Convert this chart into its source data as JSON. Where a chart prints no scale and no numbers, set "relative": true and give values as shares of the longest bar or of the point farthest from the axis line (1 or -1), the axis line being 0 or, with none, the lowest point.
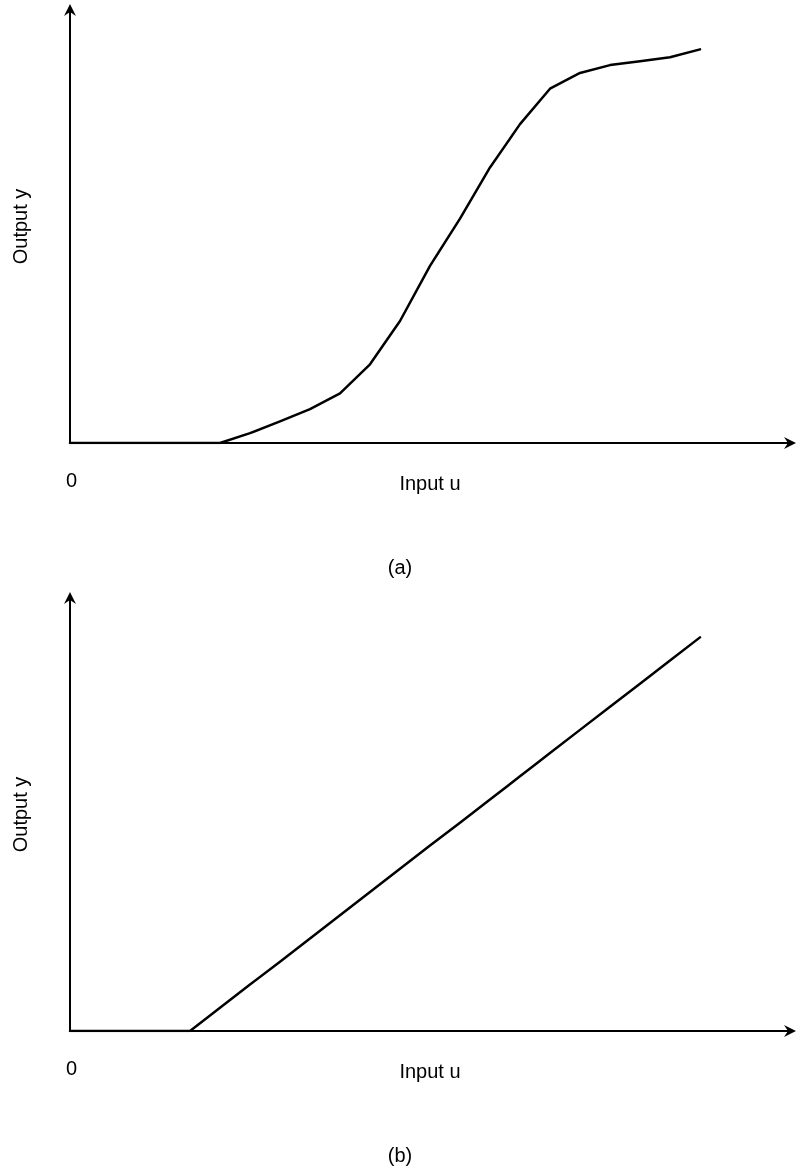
{
  "chart_data": [
    {
      "type": "line",
      "title": "(a)",
      "xlabel": "Input u",
      "ylabel": "Output y",
      "relative": true,
      "marker": "none",
      "line_style": "solid",
      "annotations": [
        "0"
      ],
      "categories": [
        null,
        null,
        null,
        null,
        null,
        null,
        null,
        null,
        null,
        null,
        null,
        null,
        null,
        null,
        null,
        null,
        null,
        null,
        null,
        null,
        null,
        null,
        null,
        null,
        null
      ],
      "series": [
        {
          "color": "#000000",
          "values": [
            0,
            0,
            0,
            0,
            0,
            0,
            0.025,
            0.055,
            0.086,
            0.126,
            0.2,
            0.31,
            0.45,
            0.57,
            0.7,
            0.81,
            0.9,
            0.94,
            0.96,
            0.97,
            0.98,
            1.0,
            null,
            null,
            null
          ]
        }
      ]
    },
    {
      "type": "line",
      "title": "(b)",
      "xlabel": "Input u",
      "ylabel": "Output y",
      "relative": true,
      "marker": "none",
      "line_style": "solid",
      "annotations": [
        "0"
      ],
      "categories": [
        null,
        null,
        null,
        null,
        null,
        null,
        null,
        null,
        null,
        null,
        null,
        null,
        null,
        null,
        null,
        null,
        null,
        null,
        null,
        null,
        null,
        null,
        null,
        null,
        null
      ],
      "series": [
        {
          "color": "#000000",
          "values": [
            0,
            0,
            0,
            0,
            0,
            0.059,
            0.118,
            0.176,
            0.235,
            0.294,
            0.353,
            0.412,
            0.471,
            0.529,
            0.588,
            0.647,
            0.706,
            0.765,
            0.824,
            0.882,
            0.941,
            1.0,
            null,
            null,
            null
          ]
        }
      ]
    }
  ]
}
